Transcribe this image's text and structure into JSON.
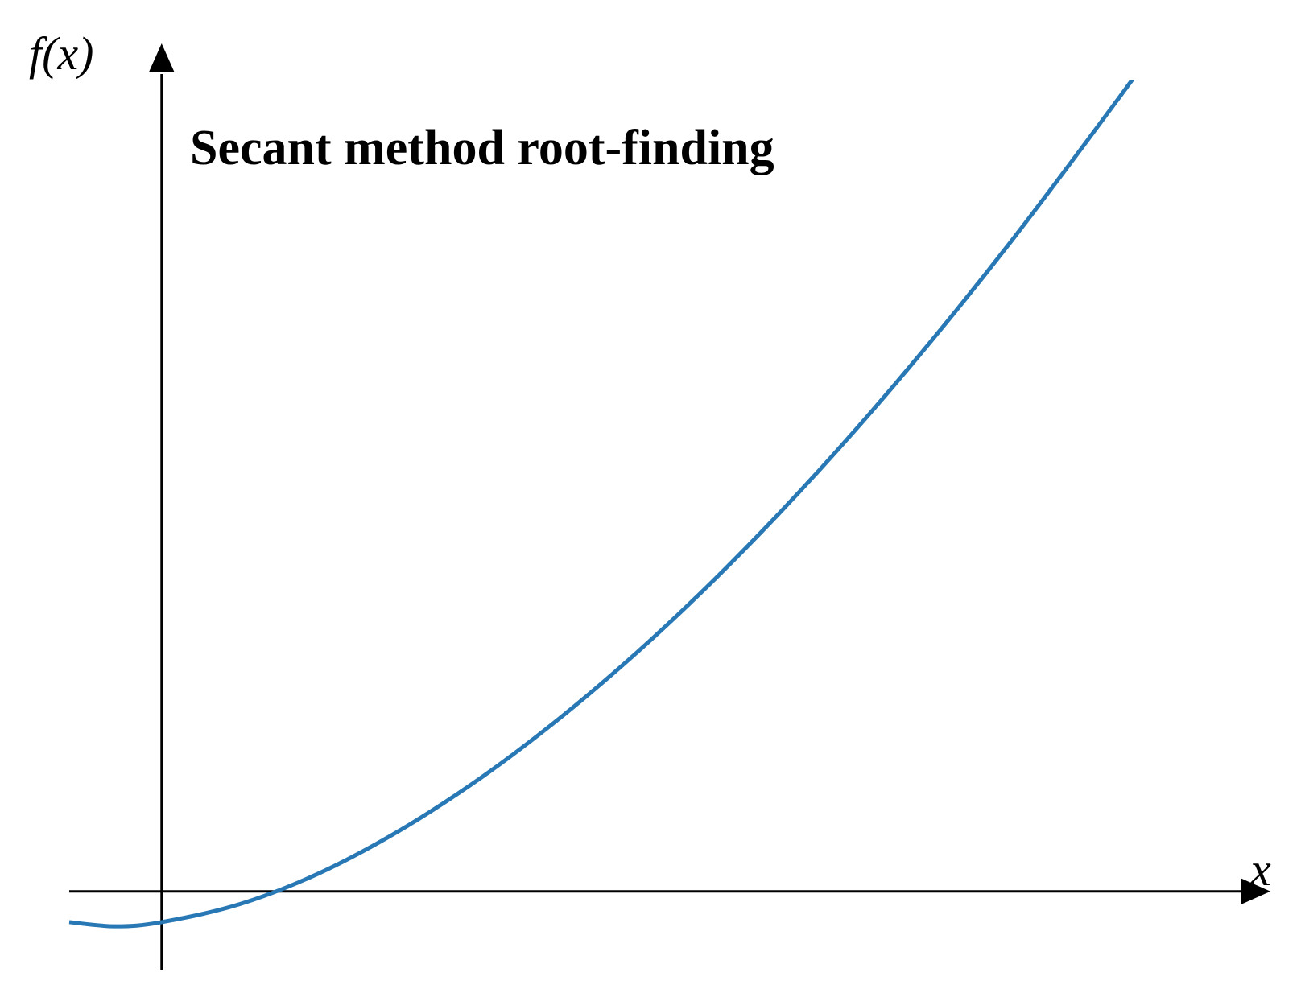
{
  "chart_data": {
    "type": "line",
    "title": "Secant method root-finding",
    "xlabel": "x",
    "ylabel": "f(x)",
    "grid": false,
    "legend": "none",
    "xlim": [
      -0.3,
      3.6
    ],
    "ylim": [
      -0.28,
      2.9
    ],
    "series": [
      {
        "x": [
          -0.3,
          -0.15,
          0,
          0.25,
          0.5,
          0.75,
          1.0,
          1.25,
          1.5,
          1.75,
          2.0,
          2.25,
          2.5,
          2.75,
          3.0,
          3.25
        ],
        "y": [
          -0.11,
          -0.125,
          -0.11,
          -0.047,
          0.059,
          0.203,
          0.378,
          0.582,
          0.812,
          1.067,
          1.346,
          1.647,
          1.97,
          2.313,
          2.677,
          3.05
        ],
        "color": "#2878b5"
      }
    ]
  }
}
